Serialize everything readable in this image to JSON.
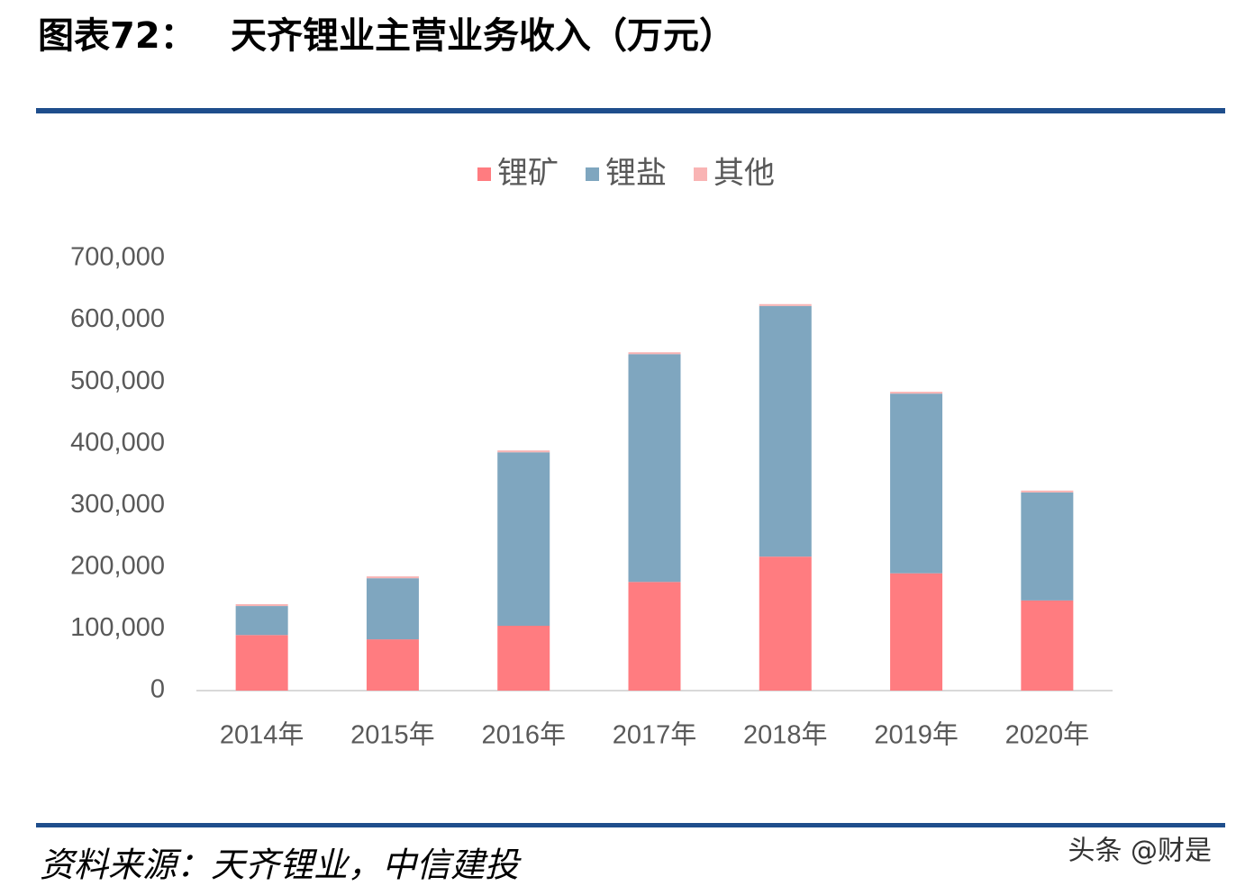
{
  "figure_label": "图表72：",
  "source": "资料来源：天齐锂业，中信建投",
  "watermark": "头条 @财是",
  "chart_data": {
    "type": "stacked_bar",
    "title": "天齐锂业主营业务收入（万元）",
    "categories": [
      "2014年",
      "2015年",
      "2016年",
      "2017年",
      "2018年",
      "2019年",
      "2020年"
    ],
    "series": [
      {
        "name": "锂矿",
        "color": "#ff7c80",
        "values": [
          90000,
          83000,
          105000,
          176000,
          217000,
          190000,
          146000
        ]
      },
      {
        "name": "锂盐",
        "color": "#7fa6bf",
        "values": [
          47000,
          99000,
          281000,
          369000,
          406000,
          291000,
          175000
        ]
      },
      {
        "name": "其他",
        "color": "#f9b4b4",
        "values": [
          3000,
          3000,
          3000,
          3000,
          3000,
          3000,
          3000
        ]
      }
    ],
    "ylim": [
      0,
      700000
    ],
    "yticks": [
      0,
      {
        "value": 100000,
        "label": "100,000"
      },
      {
        "value": 200000,
        "label": "200,000"
      },
      {
        "value": 300000,
        "label": "300,000"
      },
      {
        "value": 400000,
        "label": "400,000"
      },
      {
        "value": 500000,
        "label": "500,000"
      },
      {
        "value": 600000,
        "label": "600,000"
      },
      {
        "value": 700000,
        "label": "700,000"
      }
    ],
    "legend": "top"
  }
}
